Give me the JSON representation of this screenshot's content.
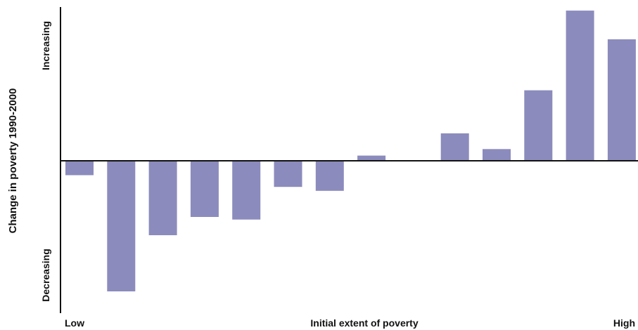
{
  "chart_data": {
    "type": "bar",
    "title": "",
    "xlabel": "Initial extent of poverty",
    "ylabel": "Change in poverty 1990-2000",
    "x_low_label": "Low",
    "x_high_label": "High",
    "y_top_label": "Increasing",
    "y_bottom_label": "Decreasing",
    "baseline": 0,
    "ylim": [
      -1.0,
      1.09
    ],
    "bar_color": "#8b8bbd",
    "grid": false,
    "categories": [
      "1",
      "2",
      "3",
      "4",
      "5",
      "6",
      "7",
      "8",
      "9",
      "10",
      "11",
      "12",
      "13",
      "14"
    ],
    "values": [
      -0.11,
      -1.0,
      -0.57,
      -0.43,
      -0.45,
      -0.2,
      -0.23,
      0.04,
      0,
      0.21,
      0.09,
      0.54,
      1.15,
      0.93
    ]
  }
}
